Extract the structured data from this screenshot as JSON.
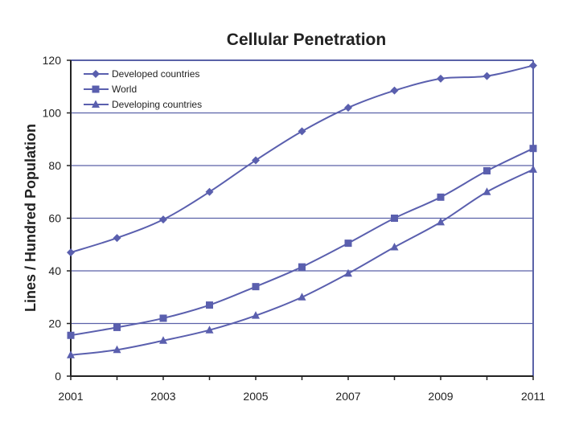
{
  "chart_data": {
    "type": "line",
    "title": "Cellular Penetration",
    "xlabel": "",
    "ylabel": "Lines / Hundred Population",
    "x": [
      2001,
      2002,
      2003,
      2004,
      2005,
      2006,
      2007,
      2008,
      2009,
      2010,
      2011
    ],
    "xticks": [
      "2001",
      "2003",
      "2005",
      "2007",
      "2009",
      "2011"
    ],
    "yticks": [
      "0",
      "20",
      "40",
      "60",
      "80",
      "100",
      "120"
    ],
    "ylim": [
      0,
      120
    ],
    "xlim": [
      2001,
      2011
    ],
    "grid": true,
    "legend_position": "top-left",
    "series": [
      {
        "name": "Developed countries",
        "marker": "diamond",
        "values": [
          47,
          52.5,
          59.5,
          70,
          82,
          93,
          102,
          108.5,
          113,
          114,
          118
        ]
      },
      {
        "name": "World",
        "marker": "square",
        "values": [
          15.5,
          18.5,
          22,
          27,
          34,
          41.5,
          50.5,
          60,
          68,
          78,
          86.5
        ]
      },
      {
        "name": "Developing countries",
        "marker": "triangle",
        "values": [
          8,
          10,
          13.5,
          17.5,
          23,
          30,
          39,
          49,
          58.5,
          70,
          78.5
        ]
      }
    ],
    "colors": {
      "series": "#5a5fae",
      "grid": "#5a62a8",
      "axis": "#222222"
    }
  }
}
